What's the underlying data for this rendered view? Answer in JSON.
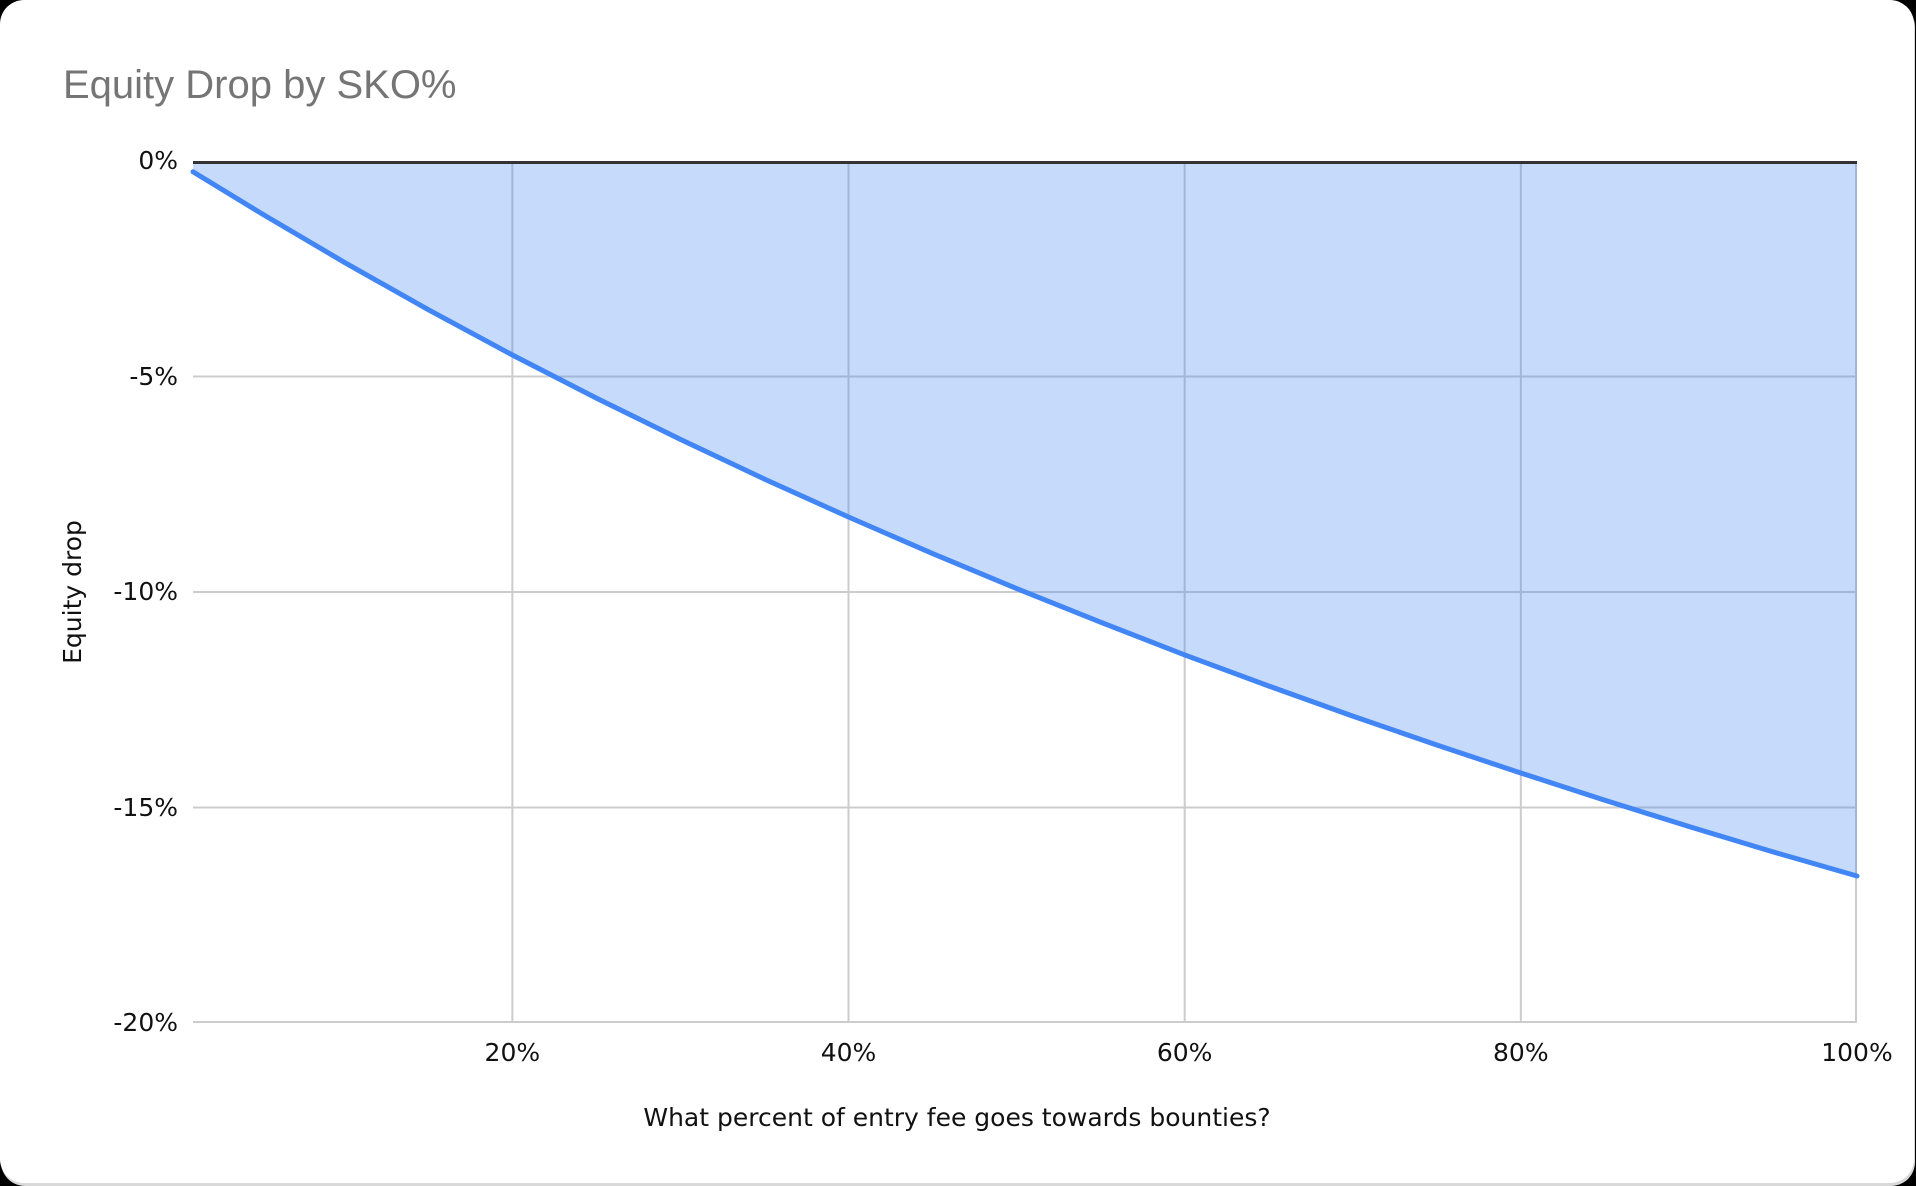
{
  "page": {
    "background_color": "#000000",
    "card_background_color": "#ffffff"
  },
  "chart_data": {
    "type": "area",
    "title": "Equity Drop by SKO%",
    "xlabel": "What percent of entry fee goes towards bounties?",
    "ylabel": "Equity drop",
    "series_name": "Equity drop",
    "x": [
      1,
      5,
      10,
      15,
      20,
      25,
      30,
      35,
      40,
      45,
      50,
      55,
      60,
      65,
      70,
      75,
      80,
      85,
      90,
      95,
      100
    ],
    "y": [
      -0.25,
      -1.2,
      -2.35,
      -3.45,
      -4.5,
      -5.5,
      -6.46,
      -7.38,
      -8.26,
      -9.11,
      -9.92,
      -10.7,
      -11.46,
      -12.18,
      -12.88,
      -13.55,
      -14.2,
      -14.83,
      -15.44,
      -16.03,
      -16.59
    ],
    "xlim": [
      1,
      100
    ],
    "ylim": [
      -20,
      0
    ],
    "x_ticks": [
      {
        "value": 20,
        "label": "20%"
      },
      {
        "value": 40,
        "label": "40%"
      },
      {
        "value": 60,
        "label": "60%"
      },
      {
        "value": 80,
        "label": "80%"
      },
      {
        "value": 100,
        "label": "100%"
      }
    ],
    "y_ticks": [
      {
        "value": 0,
        "label": "0%"
      },
      {
        "value": -5,
        "label": "-5%"
      },
      {
        "value": -10,
        "label": "-10%"
      },
      {
        "value": -15,
        "label": "-15%"
      },
      {
        "value": -20,
        "label": "-20%"
      }
    ],
    "grid": true,
    "legend_position": "none",
    "colors": {
      "line": "#4285f4",
      "fill": "rgba(66,133,244,0.3)",
      "baseline": "#333333",
      "gridline": "#cccccc",
      "title_text": "#757575",
      "axis_text": "#111111"
    }
  }
}
